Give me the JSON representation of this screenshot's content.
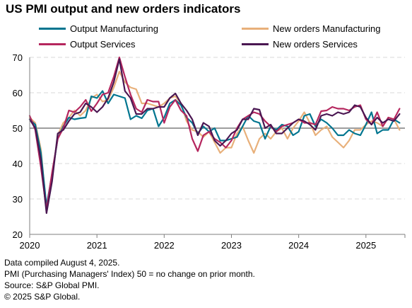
{
  "title": "US PMI output and new orders indicators",
  "notes": [
    "Data compiled August 4, 2025.",
    "PMI (Purchasing Managers' Index) 50 =  no change on prior month.",
    "Source: S&P Global PMI.",
    "© 2025 S&P Global."
  ],
  "chart_data": {
    "type": "line",
    "title": "US PMI output and new orders indicators",
    "xlabel": "",
    "ylabel": "",
    "ylim": [
      20,
      70
    ],
    "yticks": [
      20,
      30,
      40,
      50,
      60,
      70
    ],
    "xlim": [
      2020.0,
      2025.58
    ],
    "xticks": [
      "2020",
      "2021",
      "2022",
      "2023",
      "2024",
      "2025"
    ],
    "x_start": "2020-01",
    "x_step": "monthly",
    "x": [
      "2020-01",
      "2020-02",
      "2020-03",
      "2020-04",
      "2020-05",
      "2020-06",
      "2020-07",
      "2020-08",
      "2020-09",
      "2020-10",
      "2020-11",
      "2020-12",
      "2021-01",
      "2021-02",
      "2021-03",
      "2021-04",
      "2021-05",
      "2021-06",
      "2021-07",
      "2021-08",
      "2021-09",
      "2021-10",
      "2021-11",
      "2021-12",
      "2022-01",
      "2022-02",
      "2022-03",
      "2022-04",
      "2022-05",
      "2022-06",
      "2022-07",
      "2022-08",
      "2022-09",
      "2022-10",
      "2022-11",
      "2022-12",
      "2023-01",
      "2023-02",
      "2023-03",
      "2023-04",
      "2023-05",
      "2023-06",
      "2023-07",
      "2023-08",
      "2023-09",
      "2023-10",
      "2023-11",
      "2023-12",
      "2024-01",
      "2024-02",
      "2024-03",
      "2024-04",
      "2024-05",
      "2024-06",
      "2024-07",
      "2024-08",
      "2024-09",
      "2024-10",
      "2024-11",
      "2024-12",
      "2025-01",
      "2025-02",
      "2025-03",
      "2025-04",
      "2025-05",
      "2025-06",
      "2025-07"
    ],
    "reference_line": 50,
    "grid": true,
    "legend_position": "top",
    "series": [
      {
        "name": "Output Manufacturing",
        "color": "#00758f",
        "values": [
          52.5,
          51.0,
          43.0,
          28.0,
          37.0,
          47.0,
          50.5,
          53.0,
          52.5,
          52.8,
          53.0,
          59.0,
          58.5,
          60.5,
          57.0,
          59.5,
          59.0,
          58.5,
          52.5,
          53.5,
          52.8,
          55.0,
          55.5,
          50.5,
          53.0,
          57.0,
          58.0,
          56.5,
          53.0,
          51.5,
          48.5,
          50.5,
          49.0,
          50.0,
          46.5,
          46.5,
          47.0,
          47.5,
          50.5,
          53.5,
          52.0,
          51.5,
          47.0,
          50.5,
          49.5,
          51.0,
          50.5,
          48.0,
          49.0,
          53.5,
          54.0,
          50.5,
          52.5,
          51.5,
          50.0,
          48.0,
          48.0,
          49.5,
          48.5,
          48.0,
          51.0,
          54.5,
          48.5,
          49.5,
          49.5,
          52.5,
          51.5
        ]
      },
      {
        "name": "New orders Manufacturing",
        "color": "#e8b07a",
        "values": [
          53.0,
          51.5,
          44.0,
          27.0,
          36.0,
          48.0,
          51.5,
          53.0,
          55.0,
          53.5,
          55.0,
          58.5,
          59.5,
          57.5,
          58.0,
          61.5,
          66.0,
          63.0,
          61.5,
          61.0,
          57.0,
          57.0,
          56.5,
          56.0,
          57.0,
          58.5,
          59.0,
          57.0,
          52.0,
          49.5,
          49.0,
          47.5,
          49.0,
          46.0,
          43.0,
          44.5,
          44.5,
          48.5,
          50.5,
          46.5,
          43.0,
          47.0,
          48.5,
          47.0,
          49.0,
          50.0,
          47.0,
          50.0,
          52.0,
          54.5,
          51.5,
          48.0,
          49.5,
          50.5,
          47.5,
          46.0,
          44.5,
          46.5,
          49.5,
          49.5,
          51.0,
          52.0,
          51.5,
          50.5,
          53.0,
          52.5,
          49.5
        ]
      },
      {
        "name": "Output Services",
        "color": "#b5265e",
        "values": [
          53.5,
          49.5,
          39.0,
          27.0,
          37.5,
          47.0,
          50.0,
          55.0,
          54.5,
          56.0,
          58.0,
          54.8,
          57.0,
          59.5,
          60.0,
          64.5,
          70.0,
          64.5,
          59.5,
          55.5,
          54.5,
          58.0,
          57.5,
          57.5,
          51.5,
          56.0,
          58.0,
          55.0,
          53.5,
          47.0,
          43.5,
          48.0,
          49.0,
          47.0,
          46.0,
          44.5,
          46.5,
          50.0,
          52.5,
          53.5,
          54.5,
          54.0,
          52.0,
          50.5,
          49.0,
          50.5,
          51.0,
          51.5,
          52.5,
          51.5,
          51.5,
          51.0,
          54.8,
          55.0,
          56.0,
          55.5,
          55.5,
          55.0,
          56.0,
          56.5,
          52.5,
          51.0,
          54.5,
          50.5,
          53.0,
          52.5,
          55.5
        ]
      },
      {
        "name": "New orders Services",
        "color": "#4a1752",
        "values": [
          52.5,
          50.0,
          41.0,
          26.0,
          35.0,
          48.5,
          49.5,
          52.0,
          54.0,
          54.5,
          57.0,
          56.0,
          54.5,
          56.0,
          58.5,
          63.0,
          69.5,
          60.5,
          58.5,
          54.0,
          54.0,
          55.5,
          55.5,
          56.0,
          56.0,
          58.5,
          59.8,
          57.0,
          55.0,
          52.5,
          48.0,
          51.5,
          50.5,
          46.5,
          45.0,
          46.5,
          48.5,
          49.5,
          52.5,
          52.5,
          55.5,
          55.2,
          50.0,
          51.0,
          48.5,
          48.5,
          50.0,
          51.5,
          52.5,
          52.0,
          51.0,
          49.5,
          53.5,
          54.0,
          53.5,
          54.5,
          54.0,
          54.5,
          56.5,
          56.0,
          53.0,
          51.0,
          53.0,
          51.5,
          52.5,
          52.0,
          54.0
        ]
      }
    ]
  }
}
